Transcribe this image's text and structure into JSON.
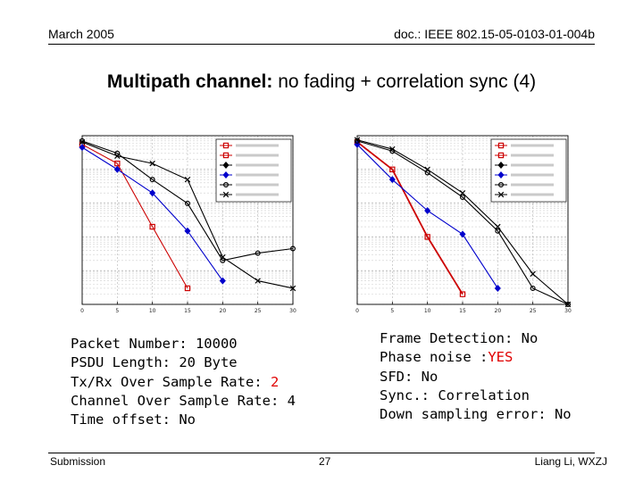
{
  "header": {
    "date": "March 2005",
    "doc_id": "doc.: IEEE 802.15-05-0103-01-004b"
  },
  "title": {
    "bold": "Multipath channel:",
    "rest": " no fading + correlation sync (4)"
  },
  "params_left": {
    "packet_number": "Packet Number: 10000",
    "psdu_length": "PSDU Length: 20 Byte",
    "txrx_osr_label": "Tx/Rx Over Sample Rate: ",
    "txrx_osr_value": "2",
    "channel_osr": "Channel Over Sample Rate: 4",
    "time_offset": "Time offset: No"
  },
  "params_right": {
    "frame_detection": "Frame Detection: No",
    "phase_noise_label": "Phase noise :",
    "phase_noise_value": "YES",
    "sfd": "SFD: No",
    "sync": "Sync.: Correlation",
    "down_sampling": "Down sampling error: No"
  },
  "footer": {
    "left": "Submission",
    "page": "27",
    "right": "Liang Li, WXZJ"
  },
  "colors": {
    "accent_red": "#e00000",
    "series_red": "#cc0000",
    "series_blue": "#0000cc",
    "series_black": "#000000"
  },
  "chart_data": [
    {
      "type": "line",
      "x": [
        0,
        5,
        10,
        15,
        20,
        25,
        30
      ],
      "xlim": [
        0,
        30
      ],
      "ylog": true,
      "grid": true,
      "legend_position": "top-right",
      "series": [
        {
          "color": "#cc0000",
          "marker": "square",
          "x": [
            0,
            5,
            10,
            15
          ],
          "values": [
            0.55,
            0.15,
            0.002,
            3e-05
          ]
        },
        {
          "color": "#0000cc",
          "marker": "diamond",
          "x": [
            0,
            5,
            10,
            15,
            20
          ],
          "values": [
            0.45,
            0.1,
            0.02,
            0.0015,
            5e-05
          ]
        },
        {
          "color": "#000000",
          "marker": "circle",
          "x": [
            0,
            5,
            10,
            15,
            20,
            25,
            30
          ],
          "values": [
            0.7,
            0.3,
            0.05,
            0.0098,
            0.0002,
            0.00033,
            0.00045
          ]
        },
        {
          "color": "#000000",
          "marker": "cross",
          "x": [
            0,
            5,
            10,
            15,
            20,
            25,
            30
          ],
          "values": [
            0.65,
            0.25,
            0.15,
            0.05,
            0.00025,
            5e-05,
            3e-05
          ]
        }
      ]
    },
    {
      "type": "line",
      "x": [
        0,
        5,
        10,
        15,
        20,
        25,
        30
      ],
      "xlim": [
        0,
        30
      ],
      "ylog": true,
      "grid": true,
      "legend_position": "top-right",
      "series": [
        {
          "color": "#cc0000",
          "marker": "square",
          "x": [
            0,
            5,
            10,
            15
          ],
          "values": [
            0.65,
            0.1,
            0.001,
            2e-05
          ]
        },
        {
          "color": "#0000cc",
          "marker": "diamond",
          "x": [
            0,
            5,
            10,
            15,
            20
          ],
          "values": [
            0.55,
            0.05,
            0.006,
            0.0012,
            3e-05
          ]
        },
        {
          "color": "#000000",
          "marker": "circle",
          "x": [
            0,
            5,
            10,
            15,
            20,
            25,
            30
          ],
          "values": [
            0.7,
            0.35,
            0.08,
            0.015,
            0.0015,
            3e-05,
            1e-05
          ]
        },
        {
          "color": "#000000",
          "marker": "cross",
          "x": [
            0,
            5,
            10,
            15,
            20,
            25,
            30
          ],
          "values": [
            0.75,
            0.4,
            0.1,
            0.02,
            0.002,
            8e-05,
            1e-05
          ]
        }
      ]
    }
  ]
}
